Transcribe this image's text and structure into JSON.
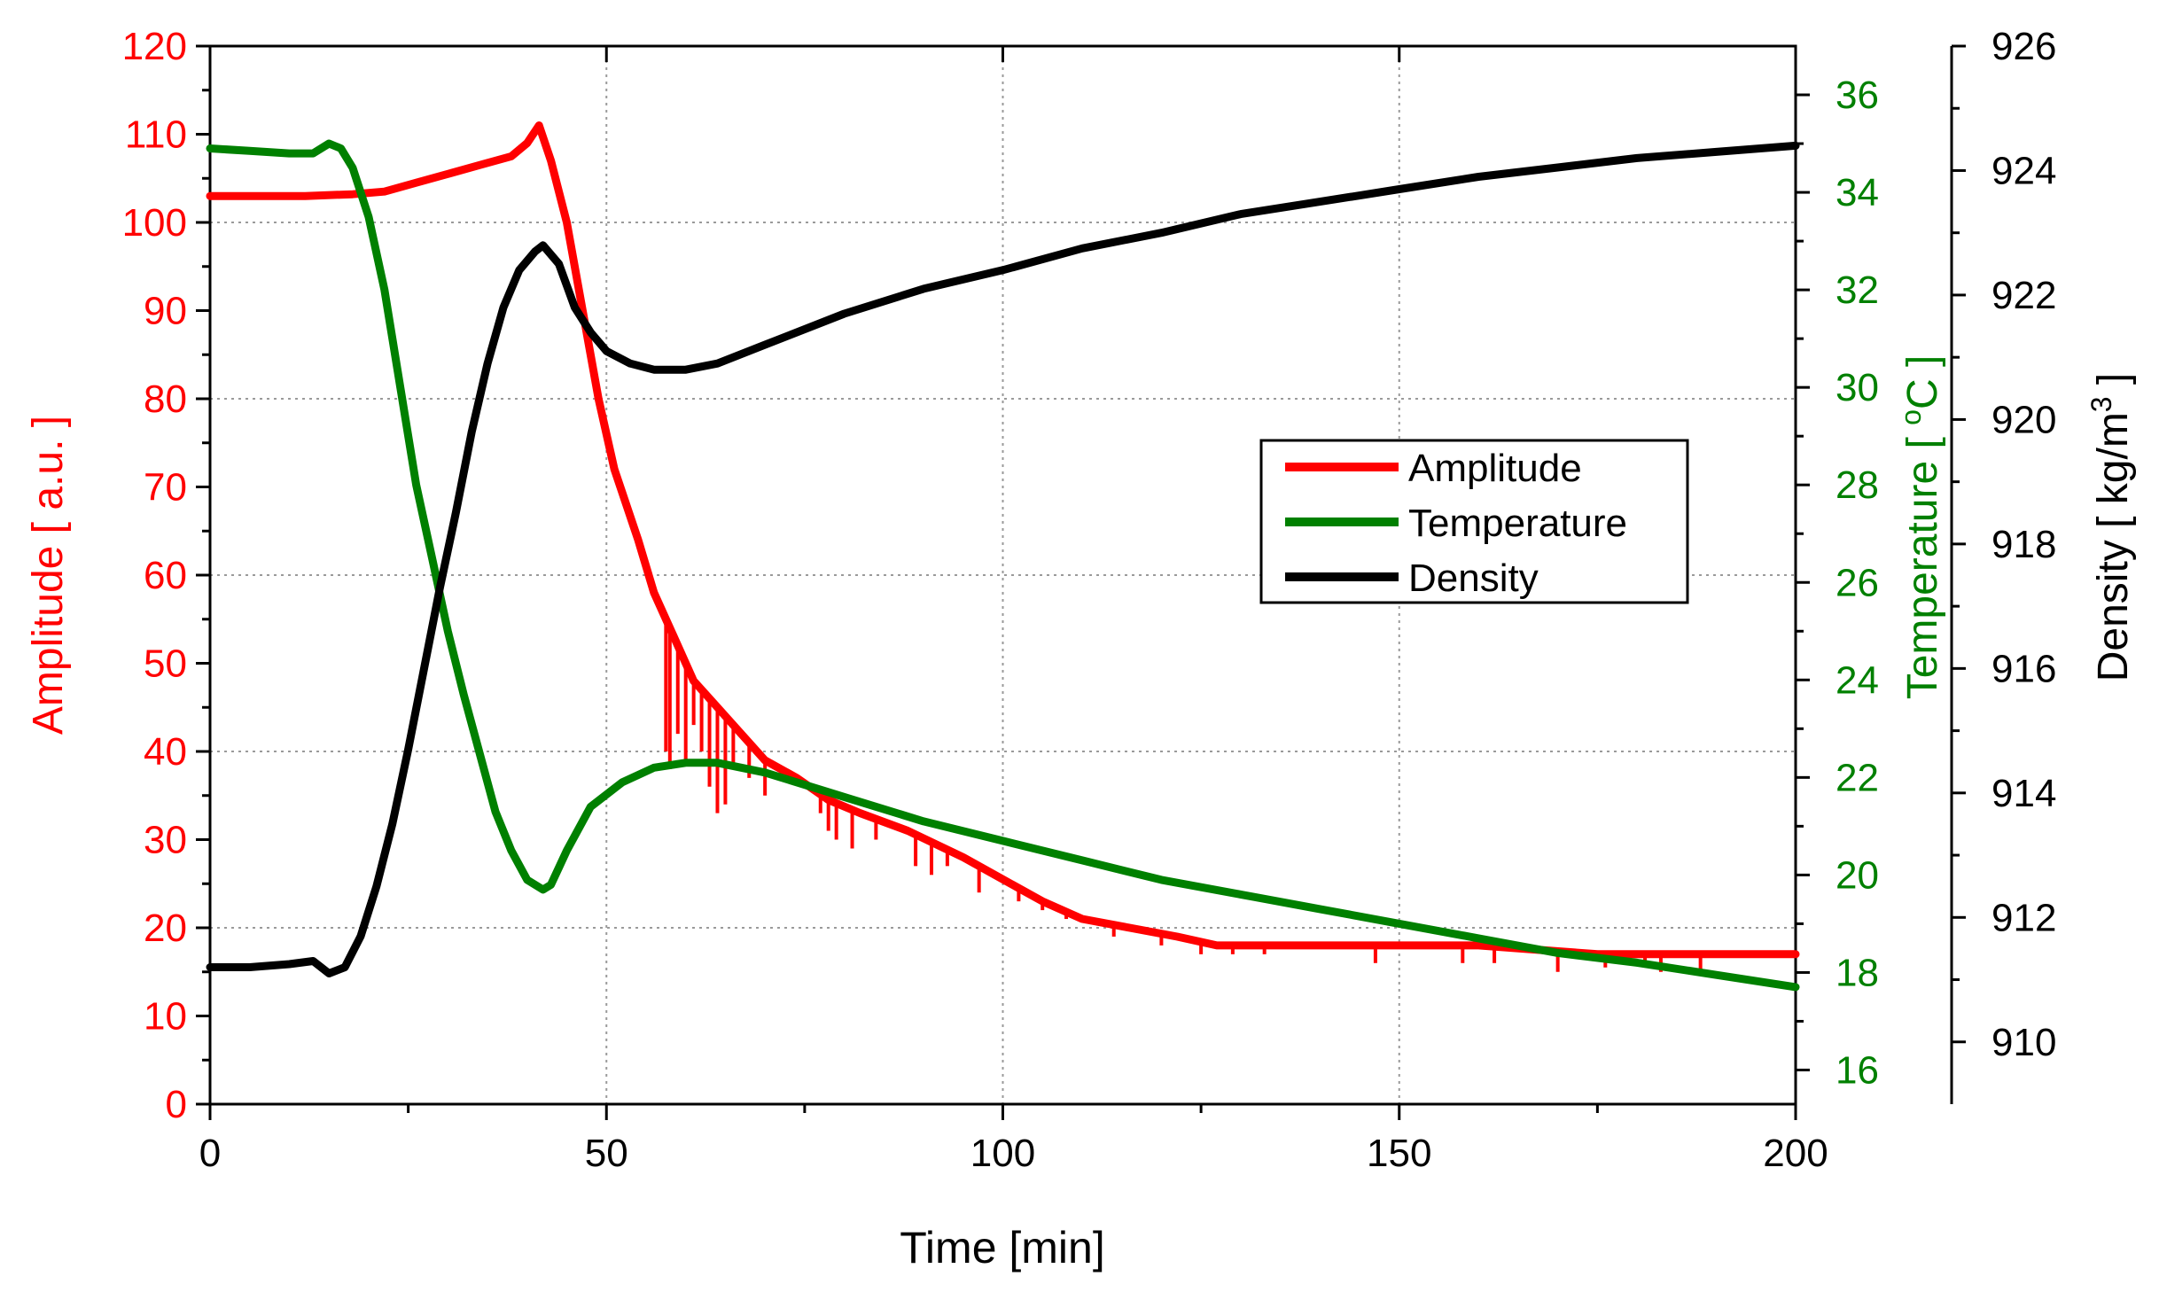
{
  "chart_data": {
    "type": "line",
    "x_axis": {
      "label": "Time [min]",
      "range": [
        0,
        200
      ],
      "ticks": [
        0,
        50,
        100,
        150,
        200
      ],
      "tick_labels": [
        "0",
        "50",
        "100",
        "150",
        "200"
      ]
    },
    "axes": {
      "amplitude": {
        "label": "Amplitude [ a.u. ]",
        "range": [
          0,
          120
        ],
        "ticks": [
          0,
          10,
          20,
          30,
          40,
          50,
          60,
          70,
          80,
          90,
          100,
          110,
          120
        ],
        "tick_labels": [
          "0",
          "10",
          "20",
          "30",
          "40",
          "50",
          "60",
          "70",
          "80",
          "90",
          "100",
          "110",
          "120"
        ],
        "color": "#ff0000"
      },
      "temperature": {
        "label": "Temperature [ ",
        "label_sup": "o",
        "label_tail": "C ]",
        "range": [
          15.3,
          37
        ],
        "ticks": [
          16,
          18,
          20,
          22,
          24,
          26,
          28,
          30,
          32,
          34,
          36
        ],
        "tick_labels": [
          "16",
          "18",
          "20",
          "22",
          "24",
          "26",
          "28",
          "30",
          "32",
          "34",
          "36"
        ],
        "color": "#008000"
      },
      "density": {
        "label": "Density [ kg/m",
        "label_sup": "3",
        "label_tail": " ]",
        "range": [
          909,
          926
        ],
        "ticks": [
          910,
          912,
          914,
          916,
          918,
          920,
          922,
          924,
          926
        ],
        "tick_labels": [
          "910",
          "912",
          "914",
          "916",
          "918",
          "920",
          "922",
          "924",
          "926"
        ],
        "color": "#000000"
      }
    },
    "grid": true,
    "legend": {
      "position": "right-center",
      "entries": [
        "Amplitude",
        "Temperature",
        "Density"
      ]
    },
    "series": [
      {
        "name": "Amplitude",
        "axis": "amplitude",
        "color": "#ff0000",
        "points": [
          [
            0,
            103
          ],
          [
            12,
            103
          ],
          [
            18,
            103.2
          ],
          [
            22,
            103.5
          ],
          [
            26,
            104.5
          ],
          [
            30,
            105.5
          ],
          [
            34,
            106.5
          ],
          [
            38,
            107.5
          ],
          [
            40,
            109
          ],
          [
            41.5,
            111
          ],
          [
            43,
            107
          ],
          [
            45,
            100
          ],
          [
            47,
            90
          ],
          [
            49,
            80
          ],
          [
            51,
            72
          ],
          [
            54,
            64
          ],
          [
            56,
            58
          ],
          [
            59,
            52
          ],
          [
            61,
            48
          ],
          [
            64,
            45
          ],
          [
            67,
            42
          ],
          [
            70,
            39
          ],
          [
            74,
            37
          ],
          [
            78,
            34.5
          ],
          [
            82,
            33
          ],
          [
            88,
            31
          ],
          [
            95,
            28
          ],
          [
            100,
            25.5
          ],
          [
            105,
            23
          ],
          [
            110,
            21
          ],
          [
            116,
            20
          ],
          [
            122,
            19
          ],
          [
            127,
            18
          ],
          [
            135,
            18
          ],
          [
            145,
            18
          ],
          [
            160,
            18
          ],
          [
            175,
            17
          ],
          [
            185,
            17
          ],
          [
            200,
            17
          ]
        ],
        "spikes": [
          [
            57.5,
            40
          ],
          [
            58,
            38
          ],
          [
            59,
            42
          ],
          [
            60,
            39
          ],
          [
            61,
            43
          ],
          [
            62,
            40
          ],
          [
            63,
            36
          ],
          [
            64,
            33
          ],
          [
            65,
            34
          ],
          [
            66,
            38
          ],
          [
            68,
            37
          ],
          [
            70,
            35
          ],
          [
            77,
            33
          ],
          [
            78,
            31
          ],
          [
            79,
            30
          ],
          [
            81,
            29
          ],
          [
            84,
            30
          ],
          [
            89,
            27
          ],
          [
            91,
            26
          ],
          [
            93,
            27
          ],
          [
            97,
            24
          ],
          [
            102,
            23
          ],
          [
            105,
            22
          ],
          [
            108,
            21
          ],
          [
            114,
            19
          ],
          [
            120,
            18
          ],
          [
            122,
            19
          ],
          [
            125,
            17
          ],
          [
            129,
            17
          ],
          [
            133,
            17
          ],
          [
            147,
            16
          ],
          [
            158,
            16
          ],
          [
            162,
            16
          ],
          [
            170,
            15
          ],
          [
            176,
            15.5
          ],
          [
            181,
            15.5
          ],
          [
            183,
            15
          ],
          [
            188,
            15
          ]
        ]
      },
      {
        "name": "Temperature",
        "axis": "temperature",
        "color": "#008000",
        "points": [
          [
            0,
            34.9
          ],
          [
            5,
            34.85
          ],
          [
            10,
            34.8
          ],
          [
            13,
            34.8
          ],
          [
            15,
            35
          ],
          [
            16.5,
            34.9
          ],
          [
            18,
            34.5
          ],
          [
            20,
            33.5
          ],
          [
            22,
            32
          ],
          [
            24,
            30
          ],
          [
            26,
            28
          ],
          [
            28,
            26.5
          ],
          [
            30,
            25
          ],
          [
            32,
            23.7
          ],
          [
            34,
            22.5
          ],
          [
            36,
            21.3
          ],
          [
            38,
            20.5
          ],
          [
            40,
            19.9
          ],
          [
            42,
            19.7
          ],
          [
            43,
            19.8
          ],
          [
            45,
            20.5
          ],
          [
            48,
            21.4
          ],
          [
            52,
            21.9
          ],
          [
            56,
            22.2
          ],
          [
            60,
            22.3
          ],
          [
            64,
            22.3
          ],
          [
            70,
            22.1
          ],
          [
            80,
            21.6
          ],
          [
            90,
            21.1
          ],
          [
            100,
            20.7
          ],
          [
            110,
            20.3
          ],
          [
            120,
            19.9
          ],
          [
            130,
            19.6
          ],
          [
            140,
            19.3
          ],
          [
            150,
            19
          ],
          [
            160,
            18.7
          ],
          [
            170,
            18.4
          ],
          [
            180,
            18.2
          ],
          [
            190,
            17.95
          ],
          [
            200,
            17.7
          ]
        ]
      },
      {
        "name": "Density",
        "axis": "density",
        "color": "#000000",
        "points": [
          [
            0,
            911.2
          ],
          [
            5,
            911.2
          ],
          [
            10,
            911.25
          ],
          [
            13,
            911.3
          ],
          [
            15,
            911.1
          ],
          [
            17,
            911.2
          ],
          [
            19,
            911.7
          ],
          [
            21,
            912.5
          ],
          [
            23,
            913.5
          ],
          [
            25,
            914.7
          ],
          [
            27,
            916
          ],
          [
            29,
            917.3
          ],
          [
            31,
            918.5
          ],
          [
            33,
            919.8
          ],
          [
            35,
            920.9
          ],
          [
            37,
            921.8
          ],
          [
            39,
            922.4
          ],
          [
            41,
            922.7
          ],
          [
            42,
            922.8
          ],
          [
            44,
            922.5
          ],
          [
            46,
            921.8
          ],
          [
            48,
            921.4
          ],
          [
            50,
            921.1
          ],
          [
            53,
            920.9
          ],
          [
            56,
            920.8
          ],
          [
            60,
            920.8
          ],
          [
            64,
            920.9
          ],
          [
            70,
            921.2
          ],
          [
            80,
            921.7
          ],
          [
            90,
            922.1
          ],
          [
            100,
            922.4
          ],
          [
            110,
            922.75
          ],
          [
            120,
            923.0
          ],
          [
            130,
            923.3
          ],
          [
            140,
            923.5
          ],
          [
            150,
            923.7
          ],
          [
            160,
            923.9
          ],
          [
            170,
            924.05
          ],
          [
            180,
            924.2
          ],
          [
            190,
            924.3
          ],
          [
            200,
            924.4
          ]
        ]
      }
    ]
  }
}
